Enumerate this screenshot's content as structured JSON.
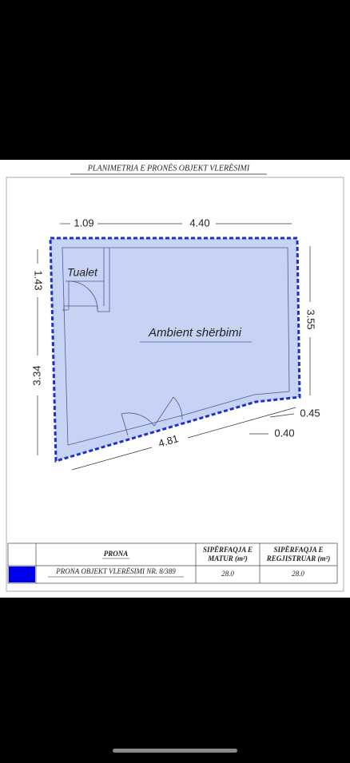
{
  "header": {
    "title": "PLANIMETRIA E PRONËS OBJEKT VLERËSIMI"
  },
  "plan": {
    "rooms": [
      "Tualet",
      "Ambient shërbimi"
    ],
    "dimensions": [
      "1.09",
      "4.40",
      "1.43",
      "3.34",
      "3.55",
      "4.81",
      "0.45",
      "0.40"
    ]
  },
  "table": {
    "headers": [
      "PRONA",
      "SIPËRFAQJA E MATUR (m²)",
      "SIPËRFAQJA E REGJISTRUAR (m²)"
    ],
    "rows": [
      [
        "PRONA OBJEKT VLERËSIMI NR. 8/389",
        "28.0",
        "28.0"
      ]
    ]
  }
}
